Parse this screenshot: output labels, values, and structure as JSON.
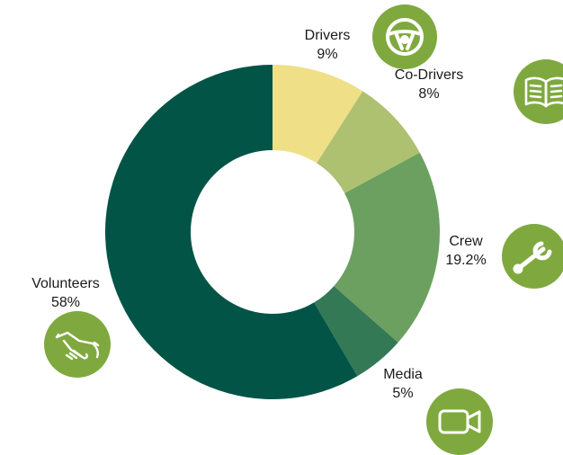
{
  "chart_data": {
    "type": "pie",
    "variant": "donut",
    "title": "",
    "categories": [
      "Drivers",
      "Co-Drivers",
      "Crew",
      "Media",
      "Volunteers"
    ],
    "values": [
      9,
      8,
      19.2,
      5,
      58
    ],
    "value_labels": [
      "9%",
      "8%",
      "19.2%",
      "5%",
      "58%"
    ],
    "colors": [
      "#efdf86",
      "#adc170",
      "#6ca060",
      "#347956",
      "#025446"
    ],
    "legend": "none",
    "icons": [
      "steering-wheel-icon",
      "book-icon",
      "wrench-icon",
      "video-camera-icon",
      "handshake-icon"
    ],
    "icon_color": "#7fa93f"
  }
}
